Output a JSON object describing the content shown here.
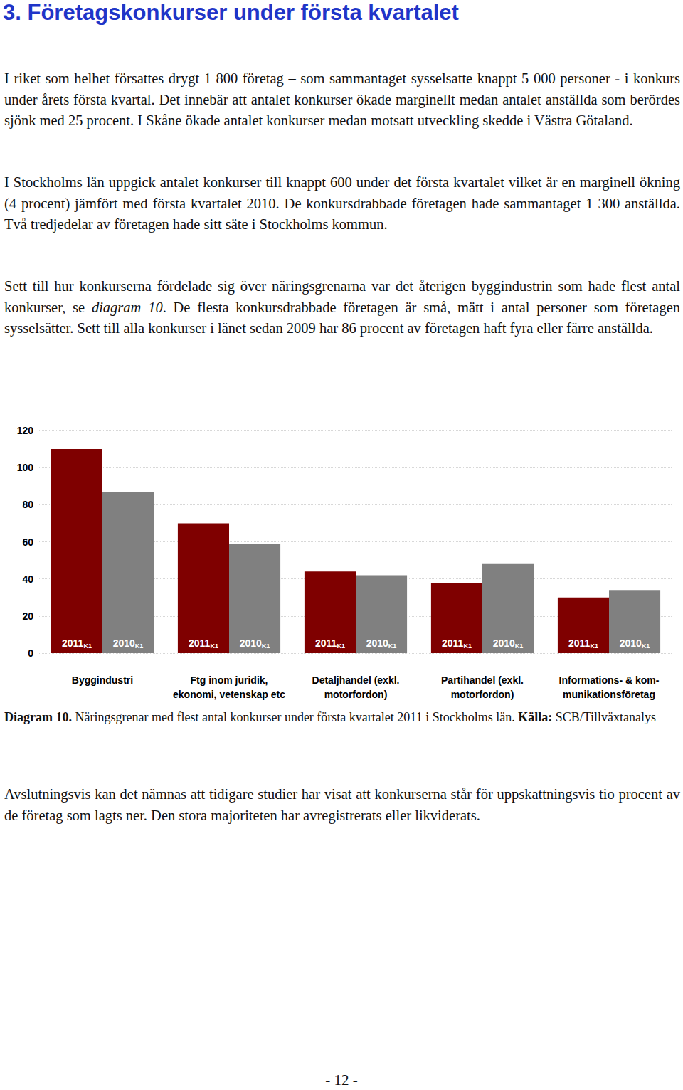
{
  "heading": "3. Företagskonkurser under första kvartalet",
  "paragraphs": [
    [
      {
        "text": "I riket som helhet försattes drygt 1 800 företag – som sammantaget sysselsatte knappt 5 000 personer - i konkurs under årets första kvartal. Det innebär att antalet konkurser ökade marginellt medan antalet anställda som berördes sjönk med 25 procent. I Skåne ökade antalet konkurser medan motsatt utveckling skedde i Västra Götaland."
      }
    ],
    [
      {
        "text": "I Stockholms län uppgick antalet konkurser till knappt 600 under det första kvartalet vilket är en marginell ökning (4 procent) jämfört med första kvartalet 2010. De konkursdrabbade företagen hade sammantaget 1 300 anställda. Två tredjedelar av företagen hade sitt säte i Stockholms kommun."
      }
    ],
    [
      {
        "text": "Sett till hur konkurserna fördelade sig över näringsgrenarna var det återigen byggindustrin som hade flest antal konkurser, se "
      },
      {
        "text": "diagram 10",
        "italic": true
      },
      {
        "text": ". De flesta konkursdrabbade företagen är små, mätt i antal personer som företagen sysselsätter. Sett till alla konkurser i länet sedan 2009 har 86 procent av företagen haft fyra eller färre anställda."
      }
    ]
  ],
  "chart_data": {
    "type": "bar",
    "categories": [
      "Byggindustri",
      "Ftg inom juridik,\nekonomi, vetenskap etc",
      "Detaljhandel (exkl.\nmotorfordon)",
      "Partihandel (exkl.\nmotorfordon)",
      "Informations- & kom-\nmunikationsföretag"
    ],
    "series": [
      {
        "name": "2011K1",
        "color": "#7f0000",
        "values": [
          110,
          70,
          44,
          38,
          30
        ]
      },
      {
        "name": "2010K1",
        "color": "#808080",
        "values": [
          87,
          59,
          42,
          48,
          34
        ]
      }
    ],
    "ylim": [
      0,
      120
    ],
    "yticks": [
      0,
      20,
      40,
      60,
      80,
      100,
      120
    ],
    "grid": true
  },
  "caption": [
    {
      "text": "Diagram 10.",
      "bold": true
    },
    {
      "text": " Näringsgrenar med flest antal konkurser under första kvartalet 2011 i Stockholms län. "
    },
    {
      "text": "Källa:",
      "bold": true
    },
    {
      "text": " SCB/Tillväxtanalys"
    }
  ],
  "closing_paragraph": [
    {
      "text": "Avslutningsvis kan det nämnas att tidigare studier har visat att konkurserna står för uppskattningsvis tio procent av de företag som lagts ner. Den stora majoriteten har avregistrerats eller likviderats."
    }
  ],
  "page_number": "- 12 -"
}
